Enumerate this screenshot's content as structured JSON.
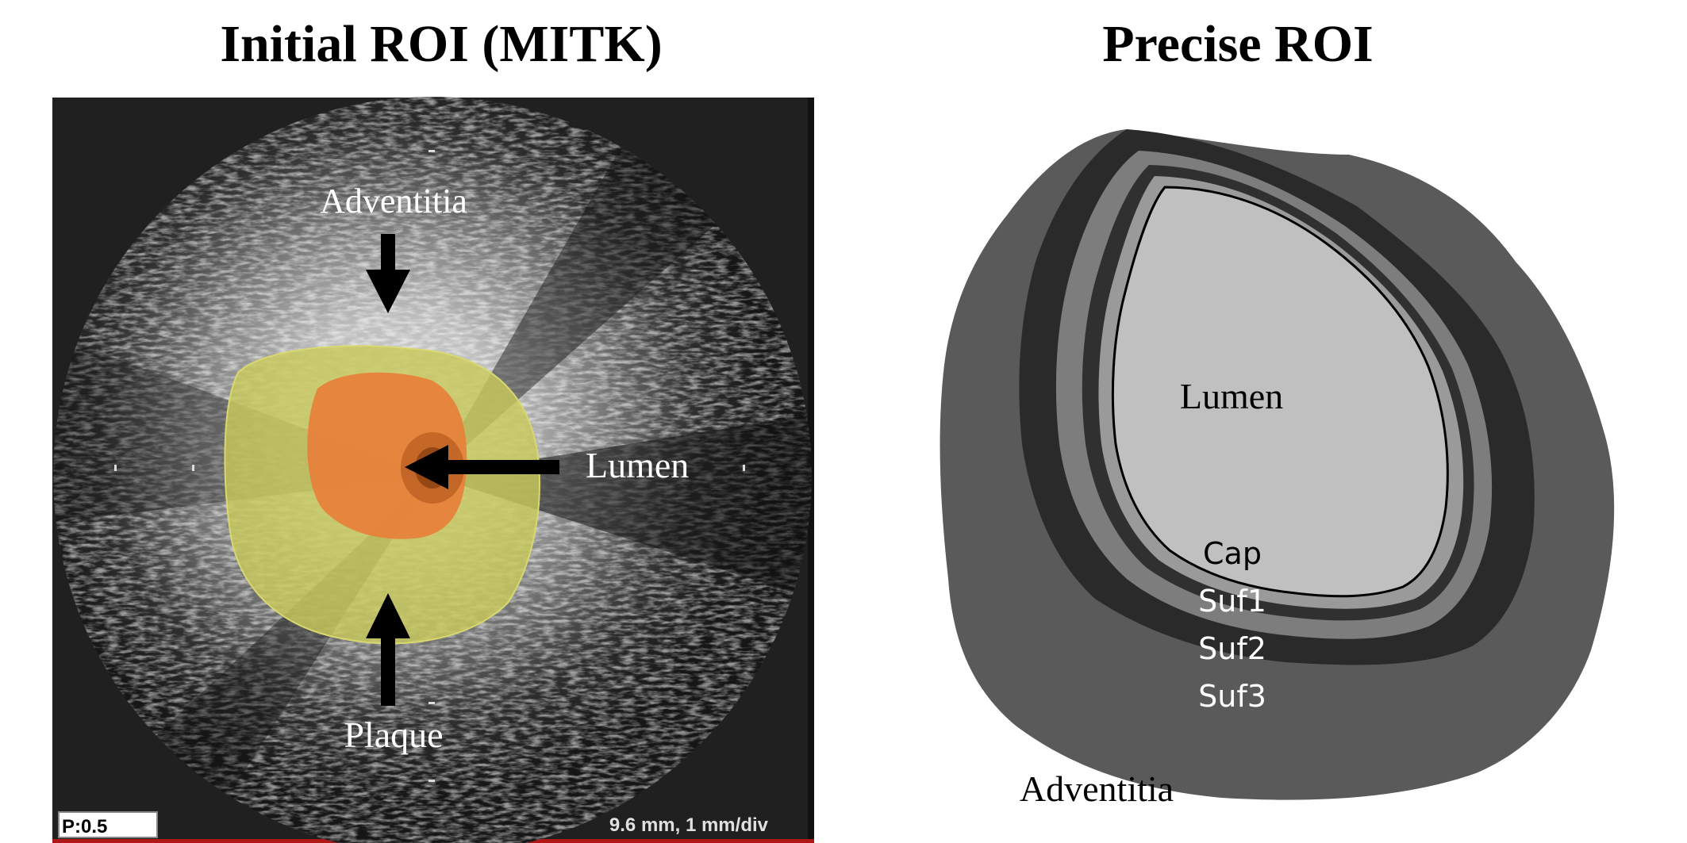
{
  "left_panel": {
    "title": "Initial ROI (MITK)",
    "labels": {
      "adventitia": "Adventitia",
      "lumen": "Lumen",
      "plaque": "Plaque"
    },
    "readout_left": "P:0.5",
    "readout_right": "9.6 mm, 1 mm/div",
    "colors": {
      "background": "#202020",
      "lumen_overlay": "#e8803a",
      "plaque_overlay": "#c8c85a",
      "arrow": "#000000",
      "label_text": "#ffffff"
    }
  },
  "right_panel": {
    "title": "Precise ROI",
    "labels": {
      "lumen": "Lumen",
      "cap": "Cap",
      "suf1": "Suf1",
      "suf2": "Suf2",
      "suf3": "Suf3",
      "adventitia": "Adventitia"
    },
    "colors": {
      "adventitia": "#5a5a5a",
      "suf3": "#2a2a2a",
      "suf2": "#7d7d7d",
      "suf1": "#303030",
      "cap": "#9a9a9a",
      "lumen": "#c0c0c0"
    }
  }
}
